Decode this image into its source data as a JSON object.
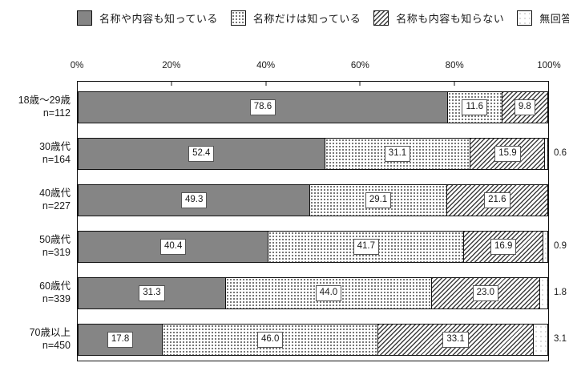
{
  "colors": {
    "segment_gray": "#858585",
    "outline": "#111111",
    "background": "#ffffff"
  },
  "legend": {
    "items": [
      {
        "label": "名称や内容も知っている",
        "pattern": "solid"
      },
      {
        "label": "名称だけは知っている",
        "pattern": "dots"
      },
      {
        "label": "名称も内容も知らない",
        "pattern": "hatch"
      },
      {
        "label": "無回答",
        "pattern": "sparse"
      }
    ]
  },
  "chart_data": {
    "type": "bar",
    "variant": "horizontal-stacked-100pct",
    "legend_position": "top",
    "value_labels": "inside-boxed",
    "x_axis": {
      "ticks": [
        "0%",
        "20%",
        "40%",
        "60%",
        "80%",
        "100%"
      ],
      "range": [
        0,
        100
      ],
      "position": "top",
      "tick_step": 20
    },
    "categories": [
      {
        "label": "18歳〜29歳",
        "n": "n=112"
      },
      {
        "label": "30歳代",
        "n": "n=164"
      },
      {
        "label": "40歳代",
        "n": "n=227"
      },
      {
        "label": "50歳代",
        "n": "n=319"
      },
      {
        "label": "60歳代",
        "n": "n=339"
      },
      {
        "label": "70歳以上",
        "n": "n=450"
      }
    ],
    "series": [
      {
        "name": "名称や内容も知っている",
        "pattern": "solid",
        "values": [
          78.6,
          52.4,
          49.3,
          40.4,
          31.3,
          17.8
        ]
      },
      {
        "name": "名称だけは知っている",
        "pattern": "dots",
        "values": [
          11.6,
          31.1,
          29.1,
          41.7,
          44.0,
          46.0
        ]
      },
      {
        "name": "名称も内容も知らない",
        "pattern": "hatch",
        "values": [
          9.8,
          15.9,
          21.6,
          16.9,
          23.0,
          33.1
        ]
      },
      {
        "name": "無回答",
        "pattern": "sparse",
        "values": [
          null,
          0.6,
          null,
          0.9,
          1.8,
          3.1
        ],
        "label_position": "outside"
      }
    ]
  }
}
